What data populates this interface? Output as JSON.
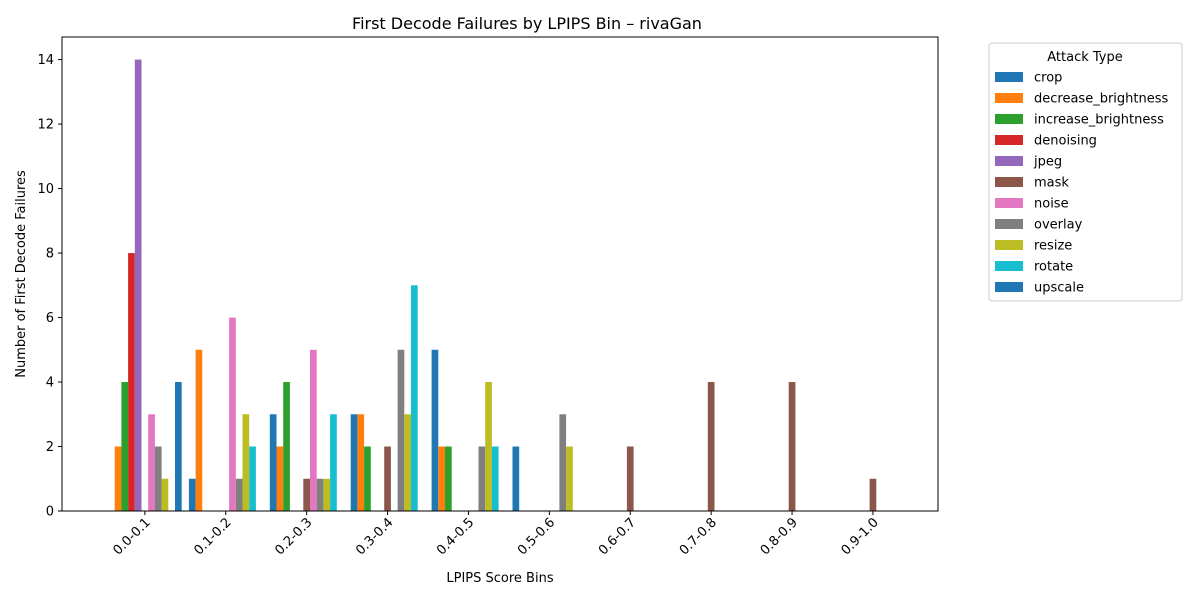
{
  "chart_data": {
    "type": "bar",
    "title": "First Decode Failures by LPIPS Bin – rivaGan",
    "xlabel": "LPIPS Score Bins",
    "ylabel": "Number of First Decode Failures",
    "ylim": [
      0,
      14.7
    ],
    "yticks": [
      0,
      2,
      4,
      6,
      8,
      10,
      12,
      14
    ],
    "grid": false,
    "legend_title": "Attack Type",
    "legend_position": "outside-top-right",
    "categories": [
      "0.0-0.1",
      "0.1-0.2",
      "0.2-0.3",
      "0.3-0.4",
      "0.4-0.5",
      "0.5-0.6",
      "0.6-0.7",
      "0.7-0.8",
      "0.8-0.9",
      "0.9-1.0"
    ],
    "series": [
      {
        "name": "crop",
        "color": "#1f77b4",
        "values": [
          0,
          1,
          3,
          3,
          5,
          2,
          0,
          0,
          0,
          0
        ]
      },
      {
        "name": "decrease_brightness",
        "color": "#ff7f0e",
        "values": [
          2,
          5,
          2,
          3,
          2,
          0,
          0,
          0,
          0,
          0
        ]
      },
      {
        "name": "increase_brightness",
        "color": "#2ca02c",
        "values": [
          4,
          0,
          4,
          2,
          2,
          0,
          0,
          0,
          0,
          0
        ]
      },
      {
        "name": "denoising",
        "color": "#d62728",
        "values": [
          8,
          0,
          0,
          0,
          0,
          0,
          0,
          0,
          0,
          0
        ]
      },
      {
        "name": "jpeg",
        "color": "#9467bd",
        "values": [
          14,
          0,
          0,
          0,
          0,
          0,
          0,
          0,
          0,
          0
        ]
      },
      {
        "name": "mask",
        "color": "#8c564b",
        "values": [
          0,
          0,
          1,
          2,
          0,
          0,
          2,
          4,
          4,
          1
        ]
      },
      {
        "name": "noise",
        "color": "#e377c2",
        "values": [
          3,
          6,
          5,
          0,
          0,
          0,
          0,
          0,
          0,
          0
        ]
      },
      {
        "name": "overlay",
        "color": "#7f7f7f",
        "values": [
          2,
          1,
          1,
          5,
          2,
          3,
          0,
          0,
          0,
          0
        ]
      },
      {
        "name": "resize",
        "color": "#bcbd22",
        "values": [
          1,
          3,
          1,
          3,
          4,
          2,
          0,
          0,
          0,
          0
        ]
      },
      {
        "name": "rotate",
        "color": "#17becf",
        "values": [
          0,
          2,
          3,
          7,
          2,
          0,
          0,
          0,
          0,
          0
        ]
      },
      {
        "name": "upscale",
        "color": "#1f77b4",
        "values": [
          4,
          0,
          0,
          0,
          0,
          0,
          0,
          0,
          0,
          0
        ]
      }
    ]
  }
}
